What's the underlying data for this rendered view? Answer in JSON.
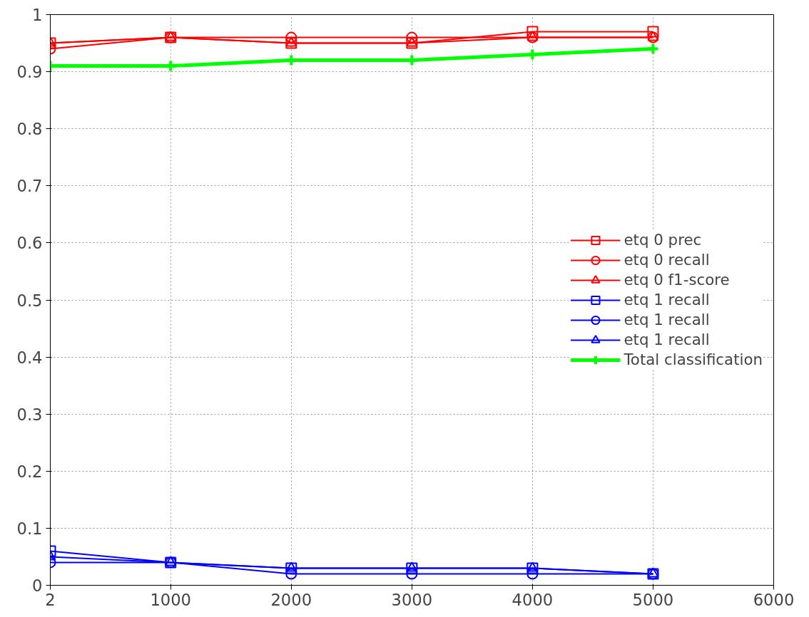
{
  "chart_data": {
    "type": "line",
    "x": [
      2,
      1000,
      2000,
      3000,
      4000,
      5000
    ],
    "xlim": [
      2,
      6000
    ],
    "xticks": [
      2,
      1000,
      2000,
      3000,
      4000,
      5000,
      6000
    ],
    "ylim": [
      0,
      1
    ],
    "yticks": [
      0,
      {
        "value": 0.1,
        "label": "0.1"
      },
      {
        "value": 0.2,
        "label": "0.2"
      },
      {
        "value": 0.3,
        "label": "0.3"
      },
      {
        "value": 0.4,
        "label": "0.4"
      },
      {
        "value": 0.5,
        "label": "0.5"
      },
      {
        "value": 0.6,
        "label": "0.6"
      },
      {
        "value": 0.7,
        "label": "0.7"
      },
      {
        "value": 0.8,
        "label": "0.8"
      },
      {
        "value": 0.9,
        "label": "0.9"
      },
      1
    ],
    "grid": true,
    "legend": "right",
    "series": [
      {
        "name": "etq 0 prec",
        "color": "#ff0000",
        "marker": "square",
        "values": [
          0.95,
          0.96,
          0.95,
          0.95,
          0.97,
          0.97
        ]
      },
      {
        "name": "etq 0 recall",
        "color": "#ff0000",
        "marker": "circle",
        "values": [
          0.94,
          0.96,
          0.96,
          0.96,
          0.96,
          0.96
        ]
      },
      {
        "name": "etq 0 f1-score",
        "color": "#ff0000",
        "marker": "triangle",
        "values": [
          0.95,
          0.96,
          0.95,
          0.95,
          0.96,
          0.96
        ]
      },
      {
        "name": "etq 1 recall",
        "color": "#0000ff",
        "marker": "square",
        "values": [
          0.06,
          0.04,
          0.03,
          0.03,
          0.03,
          0.02
        ]
      },
      {
        "name": "etq 1 recall",
        "color": "#0000ff",
        "marker": "circle",
        "values": [
          0.04,
          0.04,
          0.02,
          0.02,
          0.02,
          0.02
        ]
      },
      {
        "name": "etq 1 recall",
        "color": "#0000ff",
        "marker": "triangle",
        "values": [
          0.05,
          0.04,
          0.03,
          0.03,
          0.03,
          0.02
        ]
      },
      {
        "name": "Total classification",
        "color": "#00ff00",
        "marker": "cross",
        "values": [
          0.91,
          0.91,
          0.92,
          0.92,
          0.93,
          0.94
        ]
      }
    ]
  }
}
